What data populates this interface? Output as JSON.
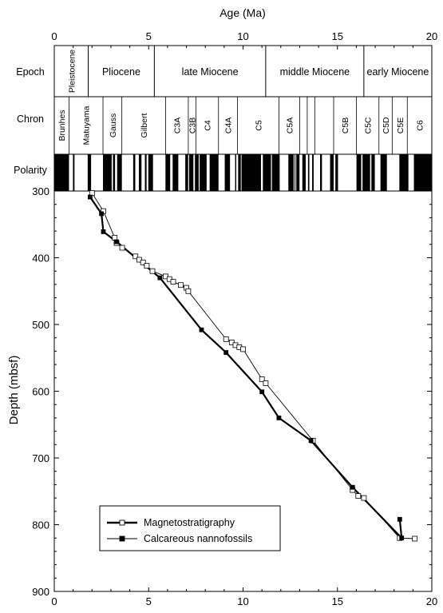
{
  "chart_data": {
    "type": "line",
    "title": "",
    "xlabel": "Age (Ma)",
    "ylabel": "Depth (mbsf)",
    "xlim": [
      0,
      20
    ],
    "ylim": [
      300,
      900
    ],
    "y_inverted": true,
    "x_ticks": [
      "0",
      "5",
      "10",
      "15",
      "20"
    ],
    "y_ticks": [
      "300",
      "400",
      "500",
      "600",
      "700",
      "800",
      "900"
    ],
    "track_labels": {
      "epoch": "Epoch",
      "chron": "Chron",
      "polarity": "Polarity"
    },
    "epochs": [
      {
        "name": "Pleistocene",
        "start": 0.0,
        "end": 1.8,
        "rotated": true
      },
      {
        "name": "Pliocene",
        "start": 1.8,
        "end": 5.3
      },
      {
        "name": "late Miocene",
        "start": 5.3,
        "end": 11.2
      },
      {
        "name": "middle Miocene",
        "start": 11.2,
        "end": 16.4
      },
      {
        "name": "early Miocene",
        "start": 16.4,
        "end": 20.0
      }
    ],
    "chrons": [
      {
        "name": "Brunhes",
        "start": 0.0,
        "end": 0.78
      },
      {
        "name": "Matuyama",
        "start": 0.78,
        "end": 2.58
      },
      {
        "name": "Gauss",
        "start": 2.58,
        "end": 3.58
      },
      {
        "name": "Gilbert",
        "start": 3.58,
        "end": 5.9
      },
      {
        "name": "C3A",
        "start": 5.9,
        "end": 7.1
      },
      {
        "name": "C3B",
        "start": 7.1,
        "end": 7.5
      },
      {
        "name": "C4",
        "start": 7.5,
        "end": 8.7
      },
      {
        "name": "C4A",
        "start": 8.7,
        "end": 9.7
      },
      {
        "name": "C5",
        "start": 9.7,
        "end": 11.9
      },
      {
        "name": "C5A",
        "start": 11.9,
        "end": 13.0
      },
      {
        "name": "",
        "start": 13.0,
        "end": 13.4
      },
      {
        "name": "",
        "start": 13.4,
        "end": 13.8
      },
      {
        "name": "",
        "start": 13.8,
        "end": 14.8
      },
      {
        "name": "C5B",
        "start": 14.8,
        "end": 16.0
      },
      {
        "name": "C5C",
        "start": 16.0,
        "end": 17.2
      },
      {
        "name": "C5D",
        "start": 17.2,
        "end": 17.9
      },
      {
        "name": "C5E",
        "start": 17.9,
        "end": 18.7
      },
      {
        "name": "C6",
        "start": 18.7,
        "end": 20.0
      }
    ],
    "polarity_normal": [
      [
        0.0,
        0.78
      ],
      [
        0.99,
        1.07
      ],
      [
        1.77,
        1.95
      ],
      [
        2.58,
        3.04
      ],
      [
        3.11,
        3.22
      ],
      [
        3.33,
        3.58
      ],
      [
        4.18,
        4.29
      ],
      [
        4.48,
        4.62
      ],
      [
        4.8,
        4.89
      ],
      [
        4.98,
        5.23
      ],
      [
        5.89,
        6.14
      ],
      [
        6.27,
        6.57
      ],
      [
        6.94,
        7.09
      ],
      [
        7.14,
        7.37
      ],
      [
        7.45,
        7.65
      ],
      [
        7.7,
        8.07
      ],
      [
        8.23,
        8.7
      ],
      [
        9.03,
        9.31
      ],
      [
        9.58,
        9.64
      ],
      [
        9.74,
        9.88
      ],
      [
        9.92,
        10.95
      ],
      [
        11.05,
        11.48
      ],
      [
        11.53,
        11.94
      ],
      [
        12.4,
        12.68
      ],
      [
        12.73,
        12.77
      ],
      [
        12.82,
        12.99
      ],
      [
        13.14,
        13.32
      ],
      [
        13.44,
        13.51
      ],
      [
        13.66,
        13.74
      ],
      [
        14.08,
        14.18
      ],
      [
        14.61,
        14.8
      ],
      [
        14.89,
        15.03
      ],
      [
        16.01,
        16.26
      ],
      [
        16.33,
        16.73
      ],
      [
        16.8,
        16.98
      ],
      [
        17.28,
        17.62
      ],
      [
        18.28,
        18.76
      ],
      [
        19.05,
        20.0
      ]
    ],
    "legend_position": "bottom-left",
    "series": [
      {
        "name": "Magnetostratigraphy",
        "marker": "open-square",
        "line": "thin",
        "x": [
          2.0,
          2.6,
          3.2,
          3.3,
          3.6,
          4.3,
          4.5,
          4.7,
          4.9,
          5.2,
          5.9,
          6.1,
          6.3,
          6.7,
          7.0,
          7.1,
          9.1,
          9.4,
          9.6,
          9.8,
          10.0,
          11.0,
          11.2,
          13.7,
          15.8,
          16.1,
          16.4,
          18.3,
          19.1
        ],
        "y": [
          303,
          330,
          370,
          378,
          385,
          398,
          403,
          407,
          412,
          420,
          428,
          432,
          436,
          441,
          445,
          450,
          522,
          527,
          531,
          534,
          537,
          582,
          588,
          674,
          748,
          757,
          760,
          820,
          821
        ]
      },
      {
        "name": "Calcareous nannofossils",
        "marker": "filled-square",
        "line": "thick",
        "x": [
          1.9,
          2.5,
          2.6,
          3.3,
          5.6,
          7.8,
          9.1,
          11.0,
          11.9,
          13.6,
          15.8,
          18.4,
          18.3
        ],
        "y": [
          309,
          334,
          361,
          376,
          430,
          508,
          542,
          601,
          640,
          674,
          744,
          820,
          792
        ]
      }
    ]
  }
}
